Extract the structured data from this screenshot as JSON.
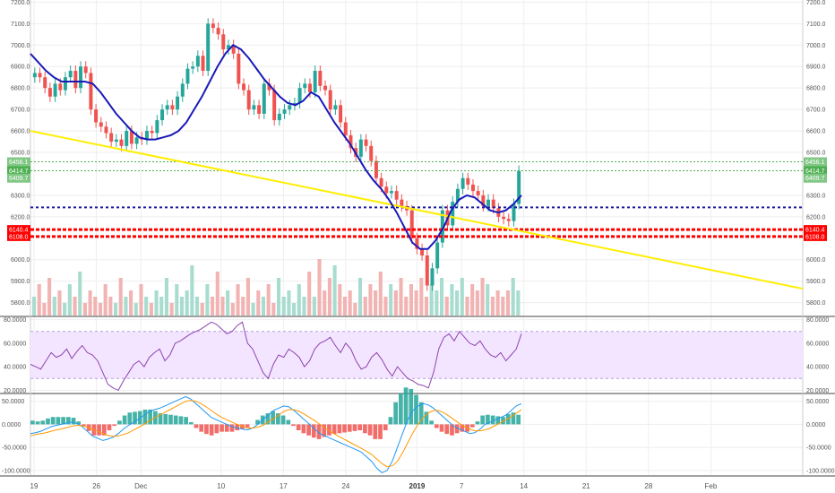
{
  "chart_data": [
    {
      "type": "candlestick",
      "pane": "price",
      "y_ticks": [
        "7200.0",
        "7100.0",
        "7000.0",
        "6900.0",
        "6800.0",
        "6700.0",
        "6600.0",
        "6500.0",
        "6300.0",
        "6200.0",
        "6000.0",
        "5900.0",
        "5800.0"
      ],
      "y_tick_values": [
        7200,
        7100,
        7000,
        6900,
        6800,
        6700,
        6600,
        6500,
        6300,
        6200,
        6000,
        5900,
        5800
      ],
      "ylim": [
        5740,
        7210
      ],
      "x_ticks": [
        "19",
        "26",
        "Dec",
        "10",
        "17",
        "24",
        "2019",
        "7",
        "14",
        "21",
        "28",
        "Feb"
      ],
      "x_tick_days": [
        0,
        7,
        12,
        21,
        28,
        35,
        43,
        48,
        55,
        62,
        69,
        76
      ],
      "x_label_pixels_note": "",
      "close_prices": [
        6870,
        6850,
        6800,
        6760,
        6820,
        6790,
        6850,
        6880,
        6800,
        6900,
        6870,
        6700,
        6640,
        6620,
        6590,
        6550,
        6560,
        6530,
        6600,
        6540,
        6570,
        6560,
        6600,
        6590,
        6650,
        6700,
        6720,
        6700,
        6760,
        6820,
        6890,
        6900,
        6950,
        6880,
        7100,
        7080,
        7050,
        6980,
        7000,
        6960,
        6820,
        6790,
        6700,
        6720,
        6680,
        6820,
        6790,
        6650,
        6680,
        6700,
        6720,
        6730,
        6800,
        6820,
        6780,
        6880,
        6810,
        6790,
        6700,
        6720,
        6640,
        6580,
        6520,
        6480,
        6560,
        6530,
        6460,
        6380,
        6340,
        6310,
        6320,
        6280,
        6250,
        6230,
        6100,
        6050,
        6020,
        5880,
        5960,
        6080,
        6230,
        6160,
        6270,
        6330,
        6380,
        6350,
        6320,
        6300,
        6250,
        6280,
        6240,
        6200,
        6190,
        6180,
        6260,
        6414
      ],
      "ma_line": [
        6960,
        6920,
        6880,
        6850,
        6830,
        6830,
        6830,
        6830,
        6820,
        6780,
        6730,
        6680,
        6640,
        6600,
        6570,
        6560,
        6560,
        6570,
        6580,
        6600,
        6640,
        6700,
        6760,
        6830,
        6900,
        6960,
        7000,
        6980,
        6940,
        6890,
        6840,
        6800,
        6760,
        6730,
        6720,
        6740,
        6780,
        6760,
        6700,
        6640,
        6590,
        6540,
        6480,
        6420,
        6370,
        6330,
        6280,
        6220,
        6150,
        6080,
        6050,
        6050,
        6090,
        6150,
        6230,
        6280,
        6300,
        6290,
        6260,
        6230,
        6220,
        6230,
        6260,
        6300
      ],
      "support_blue": 6244,
      "resistance_green": [
        6456.1,
        6414.7
      ],
      "support_red": [
        6140.4,
        6108.0
      ],
      "trendline": {
        "start": 6600,
        "end": 5865
      },
      "price_labels_left": [
        {
          "text": "6456.1",
          "kind": "green-light"
        },
        {
          "text": "6414.7",
          "kind": "green"
        },
        {
          "text": "6409.7",
          "kind": "green-light"
        },
        {
          "text": "6140.4",
          "kind": "red"
        },
        {
          "text": "6108.0",
          "kind": "red"
        }
      ],
      "price_labels_right": [
        {
          "text": "6456.1",
          "kind": "green-light"
        },
        {
          "text": "6414.7",
          "kind": "green"
        },
        {
          "text": "6409.7",
          "kind": "green-light"
        },
        {
          "text": "6140.4",
          "kind": "red"
        },
        {
          "text": "6108.0",
          "kind": "red"
        }
      ],
      "volume": [
        0.3,
        0.5,
        0.2,
        0.6,
        0.3,
        0.4,
        0.2,
        0.5,
        0.3,
        0.7,
        0.2,
        0.4,
        0.3,
        0.2,
        0.5,
        0.3,
        0.2,
        0.6,
        0.3,
        0.4,
        0.2,
        0.5,
        0.3,
        0.2,
        0.4,
        0.3,
        0.6,
        0.2,
        0.5,
        0.3,
        0.4,
        0.8,
        0.3,
        0.2,
        0.5,
        0.3,
        0.7,
        0.3,
        0.4,
        0.2,
        0.5,
        0.3,
        0.6,
        0.2,
        0.4,
        0.3,
        0.5,
        0.2,
        0.6,
        0.3,
        0.4,
        0.2,
        0.5,
        0.3,
        0.7,
        0.3,
        0.9,
        0.4,
        0.6,
        0.8,
        0.5,
        0.3,
        0.4,
        0.2,
        0.6,
        0.3,
        0.5,
        0.4,
        0.7,
        0.3,
        0.5,
        0.4,
        0.6,
        0.3,
        0.5,
        0.4,
        0.6,
        0.3,
        0.5,
        0.4,
        0.6,
        0.3,
        0.5,
        0.4,
        0.6,
        0.3,
        0.5,
        0.4,
        0.6,
        0.5,
        0.3,
        0.4,
        0.3,
        0.4,
        0.6,
        0.4
      ]
    },
    {
      "type": "line",
      "pane": "rsi",
      "y_ticks": [
        "80.0000",
        "60.0000",
        "40.0000",
        "20.0000"
      ],
      "y_tick_values": [
        80,
        60,
        40,
        20
      ],
      "ylim": [
        18,
        82
      ],
      "band": [
        30,
        70
      ],
      "values": [
        42,
        40,
        38,
        45,
        52,
        48,
        50,
        55,
        47,
        53,
        58,
        52,
        50,
        45,
        35,
        25,
        22,
        20,
        28,
        35,
        42,
        45,
        40,
        48,
        52,
        55,
        45,
        50,
        60,
        62,
        65,
        68,
        70,
        72,
        75,
        78,
        76,
        72,
        68,
        70,
        75,
        78,
        60,
        55,
        45,
        35,
        30,
        42,
        50,
        48,
        55,
        52,
        48,
        40,
        45,
        55,
        60,
        62,
        65,
        58,
        52,
        60,
        55,
        45,
        38,
        40,
        48,
        52,
        46,
        38,
        32,
        40,
        35,
        30,
        28,
        25,
        24,
        22,
        35,
        55,
        65,
        68,
        62,
        70,
        65,
        60,
        58,
        62,
        55,
        50,
        48,
        52,
        45,
        50,
        55,
        68
      ]
    },
    {
      "type": "macd",
      "pane": "macd",
      "y_ticks": [
        "50.0000",
        "0.0000",
        "-50.0000",
        "-100.0000"
      ],
      "y_tick_values": [
        50,
        0,
        -50,
        -100
      ],
      "ylim": [
        -110,
        65
      ],
      "macd": [
        -20,
        -18,
        -15,
        -10,
        -5,
        -2,
        0,
        3,
        5,
        2,
        -5,
        -15,
        -25,
        -30,
        -35,
        -32,
        -28,
        -20,
        -10,
        -2,
        5,
        12,
        20,
        28,
        32,
        35,
        40,
        45,
        50,
        55,
        60,
        55,
        45,
        35,
        25,
        15,
        10,
        5,
        0,
        -5,
        -8,
        -10,
        -12,
        -8,
        0,
        10,
        20,
        30,
        35,
        40,
        38,
        30,
        20,
        10,
        0,
        -10,
        -20,
        -25,
        -30,
        -35,
        -40,
        -45,
        -50,
        -55,
        -60,
        -70,
        -80,
        -95,
        -105,
        -100,
        -80,
        -50,
        -20,
        10,
        30,
        40,
        45,
        42,
        35,
        25,
        15,
        5,
        -5,
        -10,
        -15,
        -20,
        -18,
        -10,
        0,
        5,
        10,
        15,
        20,
        30,
        40,
        45
      ],
      "signal": [
        -25,
        -22,
        -20,
        -18,
        -15,
        -12,
        -10,
        -7,
        -4,
        -2,
        -3,
        -6,
        -10,
        -15,
        -20,
        -24,
        -26,
        -25,
        -22,
        -18,
        -12,
        -6,
        0,
        8,
        14,
        20,
        26,
        32,
        38,
        44,
        50,
        52,
        50,
        45,
        38,
        30,
        22,
        15,
        10,
        5,
        0,
        -4,
        -8,
        -8,
        -6,
        -2,
        5,
        12,
        20,
        28,
        32,
        32,
        28,
        22,
        15,
        8,
        0,
        -8,
        -15,
        -22,
        -28,
        -34,
        -40,
        -46,
        -52,
        -58,
        -65,
        -75,
        -85,
        -92,
        -90,
        -80,
        -62,
        -40,
        -18,
        0,
        15,
        25,
        30,
        30,
        25,
        18,
        10,
        2,
        -5,
        -10,
        -14,
        -14,
        -12,
        -8,
        -2,
        4,
        10,
        16,
        24,
        32
      ]
    }
  ]
}
